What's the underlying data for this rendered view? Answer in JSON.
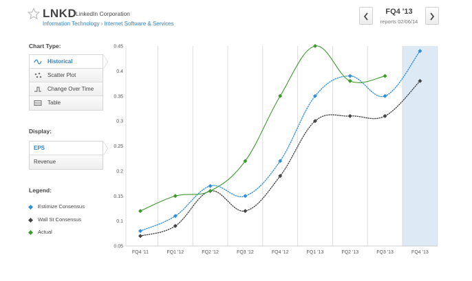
{
  "header": {
    "ticker": "LNKD",
    "company": "LinkedIn Corporation",
    "sector": "Information Technology",
    "separator": "›",
    "industry": "Internet Software & Services",
    "quarter": "FQ4 '13",
    "reports": "reports 02/06/14"
  },
  "sidebar": {
    "chart_type_label": "Chart Type:",
    "chart_types": [
      {
        "label": "Historical",
        "icon": "wave-icon",
        "active": true
      },
      {
        "label": "Scatter Plot",
        "icon": "scatter-icon",
        "active": false
      },
      {
        "label": "Change Over Time",
        "icon": "step-icon",
        "active": false
      },
      {
        "label": "Table",
        "icon": "table-icon",
        "active": false
      }
    ],
    "display_label": "Display:",
    "display": [
      {
        "label": "EPS",
        "active": true
      },
      {
        "label": "Revenue",
        "active": false
      }
    ],
    "legend_label": "Legend:",
    "legend": [
      {
        "label": "Estimize Consensus",
        "color": "#2f8fd8"
      },
      {
        "label": "Wall St Consensus",
        "color": "#444444"
      },
      {
        "label": "Actual",
        "color": "#3a9a2a"
      }
    ]
  },
  "colors": {
    "estimize": "#2f8fd8",
    "wallst": "#444444",
    "actual": "#3a9a2a",
    "highlight": "#ddeaf5",
    "grid": "#dddddd",
    "link": "#2f7fc1"
  },
  "chart_data": {
    "type": "line",
    "categories": [
      "FQ4 '11",
      "FQ1 '12",
      "FQ2 '12",
      "FQ3 '12",
      "FQ4 '12",
      "FQ1 '13",
      "FQ2 '13",
      "FQ3 '13",
      "FQ4 '13"
    ],
    "ylim": [
      0.05,
      0.45
    ],
    "yticks": [
      0.05,
      0.1,
      0.15,
      0.2,
      0.25,
      0.3,
      0.35,
      0.4,
      0.45
    ],
    "ytick_labels": [
      "0.05",
      "0.1",
      "0.15",
      "0.2",
      "0.25",
      "0.3",
      "0.35",
      "0.4",
      "0.45"
    ],
    "highlight_category": "FQ4 '13",
    "series": [
      {
        "name": "Estimize Consensus",
        "key": "estimize",
        "style": "dotted",
        "values": [
          0.08,
          0.11,
          0.17,
          0.15,
          0.22,
          0.35,
          0.39,
          0.35,
          0.44
        ]
      },
      {
        "name": "Wall St Consensus",
        "key": "wallst",
        "style": "dotted",
        "values": [
          0.07,
          0.09,
          0.16,
          0.12,
          0.19,
          0.3,
          0.31,
          0.31,
          0.38
        ]
      },
      {
        "name": "Actual",
        "key": "actual",
        "style": "solid",
        "values": [
          0.12,
          0.15,
          0.16,
          0.22,
          0.35,
          0.45,
          0.38,
          0.39,
          null
        ]
      }
    ]
  }
}
